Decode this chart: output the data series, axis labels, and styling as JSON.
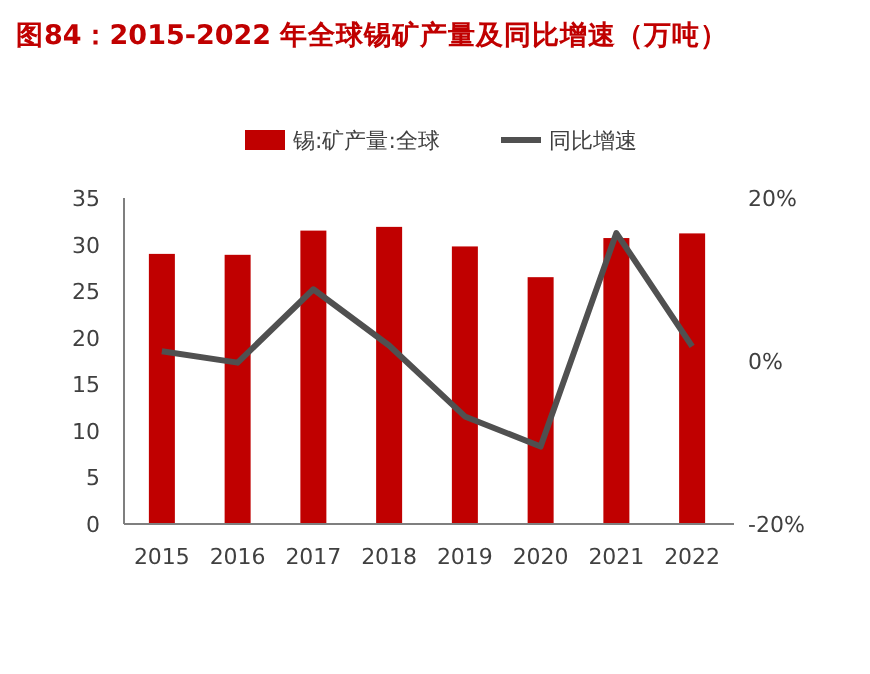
{
  "chart_data": {
    "type": "bar",
    "title": "图84：2015-2022 年全球锡矿产量及同比增速（万吨）",
    "categories": [
      "2015",
      "2016",
      "2017",
      "2018",
      "2019",
      "2020",
      "2021",
      "2022"
    ],
    "series": [
      {
        "name": "锡:矿产量:全球",
        "type": "bar",
        "color": "#c00000",
        "values": [
          29.0,
          28.9,
          31.5,
          31.9,
          29.8,
          26.5,
          30.7,
          31.2
        ]
      },
      {
        "name": "同比增速",
        "type": "line",
        "axis": "y2",
        "color": "#505050",
        "values": [
          1.2,
          -0.2,
          8.8,
          1.9,
          -6.8,
          -10.5,
          15.7,
          1.8
        ]
      }
    ],
    "ylim": [
      0,
      35
    ],
    "yticks": [
      0,
      5,
      10,
      15,
      20,
      25,
      30,
      35
    ],
    "y2lim": [
      -20,
      20
    ],
    "y2ticks": [
      {
        "value": -20,
        "label": "-20%"
      },
      {
        "value": 0,
        "label": "0%"
      },
      {
        "value": 20,
        "label": "20%"
      }
    ],
    "legend": "top",
    "grid": false
  }
}
